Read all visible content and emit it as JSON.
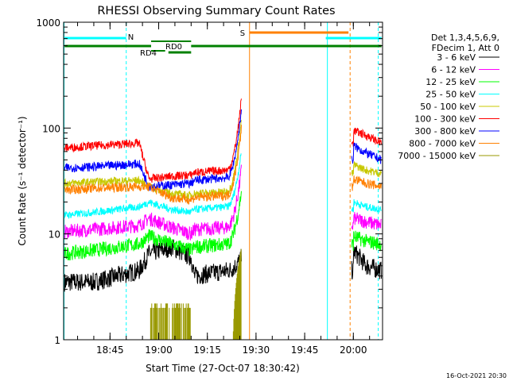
{
  "chart_data": {
    "type": "line",
    "title": "RHESSI Observing Summary Count Rates",
    "xlabel": "Start Time (27-Oct-07 18:30:42)",
    "ylabel": "Count Rate (s⁻¹ detector⁻¹)",
    "yscale": "log",
    "ylim": [
      1,
      1000
    ],
    "xlim": [
      "18:30:42",
      "20:09:00"
    ],
    "y_ticks": [
      {
        "value": 1,
        "label": "1"
      },
      {
        "value": 10,
        "label": "10"
      },
      {
        "value": 100,
        "label": "100"
      },
      {
        "value": 1000,
        "label": "1000"
      }
    ],
    "x_ticks": [
      {
        "value": "18:45",
        "label": "18:45"
      },
      {
        "value": "19:00",
        "label": "19:00"
      },
      {
        "value": "19:15",
        "label": "19:15"
      },
      {
        "value": "19:30",
        "label": "19:30"
      },
      {
        "value": "19:45",
        "label": "19:45"
      },
      {
        "value": "20:00",
        "label": "20:00"
      }
    ],
    "legend_header": [
      "Det 1,3,4,5,6,9,",
      "FDecim 1, Att 0"
    ],
    "legend_placement": "right",
    "series": [
      {
        "name": "3 - 6 keV",
        "color": "#000000",
        "values": [
          3.5,
          3.5,
          4.5,
          6.5,
          7.5,
          6.0,
          4.0,
          4.5,
          7.0,
          5.0,
          4.5
        ]
      },
      {
        "name": "6 - 12 keV",
        "color": "#ff00ff",
        "values": [
          10.5,
          11.0,
          12.0,
          14.0,
          11.5,
          10.0,
          11.0,
          11.5,
          14.0,
          13.0,
          12.0
        ]
      },
      {
        "name": "12 - 25 keV",
        "color": "#00ff00",
        "values": [
          6.5,
          7.0,
          8.0,
          9.5,
          8.0,
          7.0,
          7.5,
          8.0,
          9.5,
          8.5,
          8.0
        ]
      },
      {
        "name": "25 - 50 keV",
        "color": "#00ffff",
        "values": [
          15.0,
          16.0,
          18.0,
          20.0,
          17.0,
          16.0,
          17.0,
          18.0,
          20.0,
          18.0,
          17.0
        ]
      },
      {
        "name": "50 - 100 keV",
        "color": "#c8c800",
        "values": [
          30.0,
          31.0,
          32.0,
          28.0,
          24.0,
          23.0,
          24.0,
          25.0,
          45.0,
          40.0,
          37.0
        ]
      },
      {
        "name": "100 - 300 keV",
        "color": "#ff0000",
        "values": [
          65.0,
          68.0,
          72.0,
          33.0,
          35.0,
          36.0,
          38.0,
          40.0,
          95.0,
          85.0,
          72.0
        ]
      },
      {
        "name": "300 - 800 keV",
        "color": "#0000ff",
        "values": [
          42.0,
          43.0,
          46.0,
          28.0,
          29.0,
          30.0,
          32.0,
          34.0,
          68.0,
          58.0,
          50.0
        ]
      },
      {
        "name": "800 - 7000 keV",
        "color": "#ff8000",
        "values": [
          26.0,
          27.0,
          28.0,
          28.0,
          22.0,
          21.0,
          22.0,
          23.0,
          33.0,
          30.0,
          28.0
        ]
      },
      {
        "name": "7000 - 15000 keV",
        "color": "#999900",
        "values": []
      }
    ],
    "annotations": [
      {
        "label": "N",
        "color": "#00ffff"
      },
      {
        "label": "RD0",
        "color": "#008000"
      },
      {
        "label": "RD4",
        "color": "#008000"
      },
      {
        "label": "S",
        "color": "#ff8000"
      }
    ],
    "timestamp": "16-Oct-2021 20:30"
  }
}
